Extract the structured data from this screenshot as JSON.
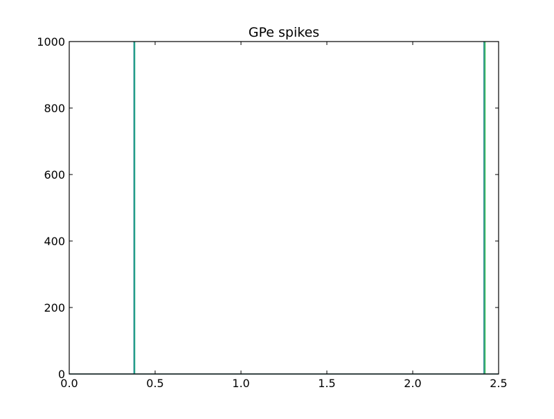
{
  "chart_data": {
    "type": "line",
    "title": "GPe spikes",
    "xlabel": "",
    "ylabel": "",
    "xlim": [
      0.0,
      2.5
    ],
    "ylim": [
      0,
      1000
    ],
    "x_ticks": [
      "0.0",
      "0.5",
      "1.0",
      "1.5",
      "2.0",
      "2.5"
    ],
    "y_ticks": [
      "0",
      "200",
      "400",
      "600",
      "800",
      "1000"
    ],
    "grid": false,
    "legend": "none",
    "spike_times": [
      0.377,
      0.381,
      2.415,
      2.421
    ],
    "spike_height": 1000,
    "colors": [
      "#1f7f8f",
      "#22a884",
      "#1f7f8f",
      "#3cbf5a"
    ]
  }
}
